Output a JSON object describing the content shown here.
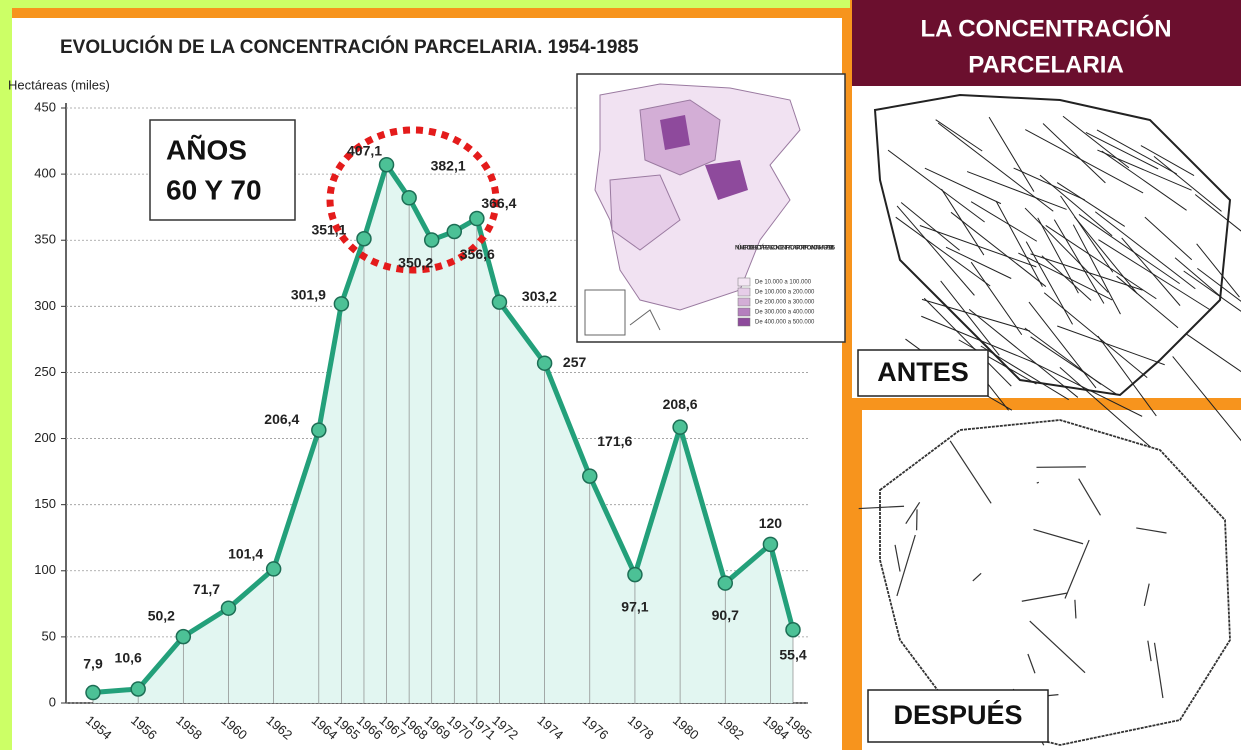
{
  "chart_data": {
    "type": "line",
    "title": "EVOLUCIÓN DE LA CONCENTRACIÓN PARCELARIA. 1954-1985",
    "y_label": "Hectáreas (miles)",
    "annotation": [
      "AÑOS",
      "60 Y 70"
    ],
    "x": [
      1954,
      1956,
      1958,
      1960,
      1962,
      1964,
      1965,
      1966,
      1967,
      1968,
      1969,
      1970,
      1971,
      1972,
      1974,
      1976,
      1978,
      1980,
      1982,
      1984,
      1985
    ],
    "values": [
      7.9,
      10.6,
      50.2,
      71.7,
      101.4,
      206.4,
      301.9,
      351.1,
      407.1,
      382.1,
      350.2,
      356.6,
      366.4,
      303.2,
      257,
      171.6,
      97.1,
      208.6,
      90.7,
      120,
      55.4
    ],
    "value_labels": [
      "7,9",
      "10,6",
      "50,2",
      "71,7",
      "101,4",
      "206,4",
      "301,9",
      "351,1",
      "407,1",
      "382,1",
      "350,2",
      "356,6",
      "366,4",
      "303,2",
      "257",
      "171,6",
      "97,1",
      "208,6",
      "90,7",
      "120",
      "55,4"
    ],
    "color": "#23a07a",
    "xlim": [
      1954,
      1985
    ],
    "ylim": [
      0,
      450
    ],
    "yticks": [
      0,
      50,
      100,
      150,
      200,
      250,
      300,
      350,
      400,
      450
    ],
    "grid": true
  },
  "map_inset": {
    "legend_title": "NÚMERO DE HECTÁREAS CONCENTRADAS POR PROVINCIAS HASTA 1985",
    "legend_items": [
      "De 10.000 a 100.000",
      "De 100.000 a 200.000",
      "De 200.000 a 300.000",
      "De 300.000 a 400.000",
      "De 400.000 a 500.000"
    ],
    "legend_colors": [
      "#f4e6f4",
      "#e6cde8",
      "#d3aed6",
      "#b57fbe",
      "#8e4a9c"
    ]
  },
  "side_panel": {
    "title": [
      "LA CONCENTRACIÓN",
      "PARCELARIA"
    ],
    "before": "ANTES",
    "after": "DESPUÉS"
  }
}
